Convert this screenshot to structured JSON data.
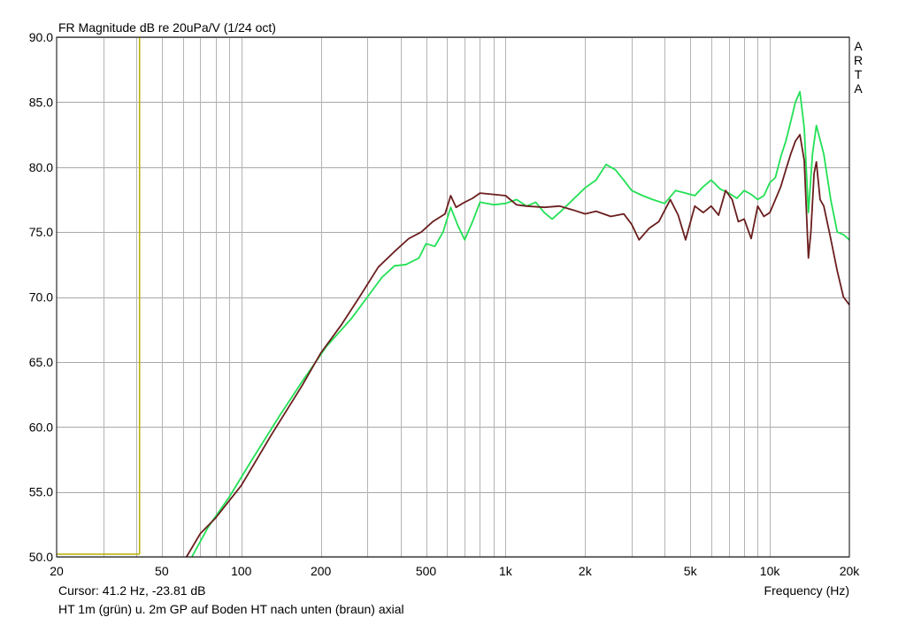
{
  "chart_data": {
    "type": "line",
    "title": "FR Magnitude dB re 20uPa/V (1/24 oct)",
    "brand_letters": [
      "A",
      "R",
      "T",
      "A"
    ],
    "xlabel": "Frequency (Hz)",
    "ylabel": "",
    "x_scale": "log",
    "xlim": [
      20,
      20000
    ],
    "ylim": [
      50,
      90
    ],
    "grid": true,
    "x_tick_labels": [
      {
        "value": 20,
        "label": "20"
      },
      {
        "value": 50,
        "label": "50"
      },
      {
        "value": 100,
        "label": "100"
      },
      {
        "value": 200,
        "label": "200"
      },
      {
        "value": 500,
        "label": "500"
      },
      {
        "value": 1000,
        "label": "1k"
      },
      {
        "value": 2000,
        "label": "2k"
      },
      {
        "value": 5000,
        "label": "5k"
      },
      {
        "value": 10000,
        "label": "10k"
      },
      {
        "value": 20000,
        "label": "20k"
      }
    ],
    "y_tick_labels": [
      {
        "value": 50,
        "label": "50.0"
      },
      {
        "value": 55,
        "label": "55.0"
      },
      {
        "value": 60,
        "label": "60.0"
      },
      {
        "value": 65,
        "label": "65.0"
      },
      {
        "value": 70,
        "label": "70.0"
      },
      {
        "value": 75,
        "label": "75.0"
      },
      {
        "value": 80,
        "label": "80.0"
      },
      {
        "value": 85,
        "label": "85.0"
      },
      {
        "value": 90,
        "label": "90.0"
      }
    ],
    "cursor": {
      "x": 41.2,
      "y": -23.81,
      "color": "#b8b000"
    },
    "cursor_text": "Cursor: 41.2 Hz, -23.81 dB",
    "caption": "HT 1m (grün) u. 2m GP auf Boden HT nach unten (braun) axial",
    "series": [
      {
        "color": "#22e055",
        "x": [
          65,
          75,
          90,
          110,
          140,
          170,
          210,
          260,
          300,
          340,
          380,
          420,
          470,
          500,
          540,
          580,
          620,
          660,
          700,
          750,
          800,
          900,
          1000,
          1100,
          1200,
          1300,
          1400,
          1500,
          1600,
          1800,
          2000,
          2200,
          2400,
          2600,
          2800,
          3000,
          3300,
          3600,
          4000,
          4400,
          4800,
          5200,
          5600,
          6000,
          6500,
          7000,
          7500,
          8000,
          8500,
          9000,
          9500,
          10000,
          10500,
          11000,
          11500,
          12000,
          12500,
          13000,
          13500,
          14000,
          14500,
          15000,
          16000,
          17000,
          18000,
          19000,
          20000
        ],
        "y": [
          50.0,
          52.3,
          54.6,
          57.5,
          60.9,
          63.5,
          66.2,
          68.3,
          70.0,
          71.5,
          72.4,
          72.5,
          73.0,
          74.1,
          73.9,
          75.0,
          76.9,
          75.5,
          74.4,
          75.8,
          77.3,
          77.1,
          77.2,
          77.5,
          77.0,
          77.3,
          76.5,
          76.0,
          76.5,
          77.5,
          78.4,
          79.0,
          80.2,
          79.8,
          79.0,
          78.2,
          77.8,
          77.5,
          77.2,
          78.2,
          78.0,
          77.8,
          78.5,
          79.0,
          78.3,
          78.0,
          77.6,
          78.2,
          77.9,
          77.5,
          77.8,
          78.8,
          79.2,
          80.8,
          82.0,
          83.5,
          85.0,
          85.8,
          83.0,
          76.5,
          81.0,
          83.2,
          81.0,
          77.5,
          75.0,
          74.8,
          74.4
        ]
      },
      {
        "color": "#6b1e1e",
        "x": [
          62,
          70,
          80,
          100,
          130,
          170,
          200,
          240,
          280,
          330,
          380,
          430,
          480,
          530,
          590,
          620,
          650,
          700,
          750,
          800,
          900,
          1000,
          1100,
          1200,
          1400,
          1600,
          1800,
          2000,
          2200,
          2500,
          2800,
          3000,
          3200,
          3500,
          3800,
          4200,
          4500,
          4800,
          5200,
          5600,
          6000,
          6400,
          6800,
          7200,
          7600,
          8000,
          8500,
          9000,
          9500,
          10000,
          10500,
          11000,
          11500,
          12000,
          12500,
          13000,
          13500,
          14000,
          14300,
          14700,
          15000,
          15500,
          16000,
          17000,
          18000,
          19000,
          20000
        ],
        "y": [
          50.0,
          51.8,
          53.0,
          55.5,
          59.4,
          63.2,
          65.7,
          67.9,
          70.0,
          72.3,
          73.5,
          74.5,
          75.0,
          75.8,
          76.4,
          77.8,
          76.9,
          77.3,
          77.6,
          78.0,
          77.9,
          77.8,
          77.1,
          77.0,
          76.9,
          77.0,
          76.7,
          76.4,
          76.6,
          76.2,
          76.4,
          75.6,
          74.4,
          75.3,
          75.8,
          77.5,
          76.3,
          74.4,
          77.0,
          76.5,
          77.0,
          76.3,
          78.2,
          77.5,
          75.8,
          76.0,
          74.5,
          77.0,
          76.2,
          76.5,
          77.5,
          78.5,
          79.8,
          81.0,
          82.0,
          82.5,
          80.5,
          73.0,
          75.0,
          79.5,
          80.4,
          77.5,
          77.0,
          74.5,
          72.0,
          70.0,
          69.4
        ]
      }
    ]
  }
}
